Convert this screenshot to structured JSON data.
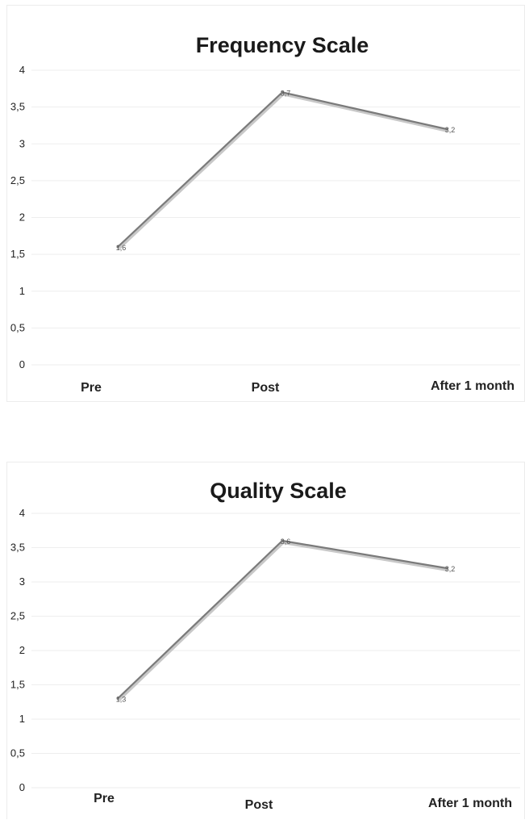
{
  "chart_data": [
    {
      "type": "line",
      "title": "Frequency Scale",
      "categories": [
        "Pre",
        "Post",
        "After 1 month"
      ],
      "series": [
        {
          "values": [
            1.6,
            3.7,
            3.2
          ],
          "color": "#7a7a7a"
        }
      ],
      "ylim": [
        0,
        4
      ],
      "yticks": [
        "0",
        "0,5",
        "1",
        "1,5",
        "2",
        "2,5",
        "3",
        "3,5",
        "4"
      ],
      "data_labels": [
        "1,6",
        "3,7",
        "3,2"
      ],
      "grid": true,
      "legend": "none"
    },
    {
      "type": "line",
      "title": "Quality Scale",
      "categories": [
        "Pre",
        "Post",
        "After 1 month"
      ],
      "series": [
        {
          "values": [
            1.3,
            3.6,
            3.2
          ],
          "color": "#7a7a7a"
        }
      ],
      "ylim": [
        0,
        4
      ],
      "yticks": [
        "0",
        "0,5",
        "1",
        "1,5",
        "2",
        "2,5",
        "3",
        "3,5",
        "4"
      ],
      "data_labels": [
        "1,3",
        "3,6",
        "3,2"
      ],
      "grid": true,
      "legend": "none"
    }
  ]
}
